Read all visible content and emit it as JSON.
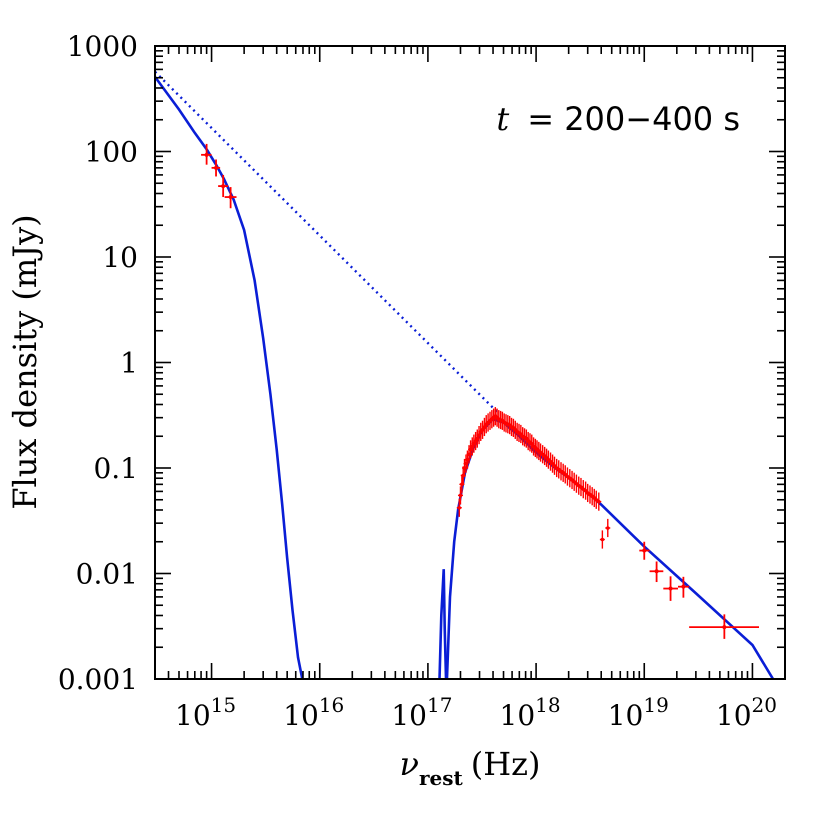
{
  "chart_data": {
    "type": "scatter",
    "xscale": "log",
    "yscale": "log",
    "xlim": [
      300000000000000.0,
      2e+20
    ],
    "ylim": [
      0.001,
      1000
    ],
    "grid": false,
    "xlabel": {
      "symbol": "ν",
      "subscript": "rest",
      "unit": "(Hz)"
    },
    "ylabel": "Flux density (mJy)",
    "annotation": {
      "var": "t",
      "text": "= 200−400 s"
    },
    "x_tick_labels": [
      {
        "value": 1000000000000000.0,
        "base": "10",
        "exp": "15"
      },
      {
        "value": 1e+16,
        "base": "10",
        "exp": "16"
      },
      {
        "value": 1e+17,
        "base": "10",
        "exp": "17"
      },
      {
        "value": 1e+18,
        "base": "10",
        "exp": "18"
      },
      {
        "value": 1e+19,
        "base": "10",
        "exp": "19"
      },
      {
        "value": 1e+20,
        "base": "10",
        "exp": "20"
      }
    ],
    "y_tick_labels": [
      {
        "value": 1000,
        "text": "1000"
      },
      {
        "value": 100,
        "text": "100"
      },
      {
        "value": 10,
        "text": "10"
      },
      {
        "value": 1,
        "text": "1"
      },
      {
        "value": 0.1,
        "text": "0.1"
      },
      {
        "value": 0.01,
        "text": "0.01"
      },
      {
        "value": 0.001,
        "text": "0.001"
      }
    ],
    "colors": {
      "model": "#0a1ed6",
      "data": "#ff0000",
      "axes": "#000000"
    },
    "series": [
      {
        "kind": "model-solid",
        "segments": [
          [
            [
              300000000000000.0,
              510
            ],
            [
              500000000000000.0,
              250
            ],
            [
              700000000000000.0,
              150
            ],
            [
              900000000000000.0,
              105
            ],
            [
              1100000000000000.0,
              75
            ],
            [
              1300000000000000.0,
              55
            ],
            [
              1600000000000000.0,
              35
            ],
            [
              2000000000000000.0,
              18
            ],
            [
              2500000000000000.0,
              6
            ],
            [
              3000000000000000.0,
              1.7
            ],
            [
              3500000000000000.0,
              0.5
            ],
            [
              4000000000000000.0,
              0.15
            ],
            [
              4500000000000000.0,
              0.045
            ],
            [
              5000000000000000.0,
              0.014
            ],
            [
              5600000000000000.0,
              0.0045
            ],
            [
              6300000000000000.0,
              0.0016
            ],
            [
              6900000000000000.0,
              0.001
            ]
          ],
          [
            [
              1.28e+17,
              0.001
            ],
            [
              1.33e+17,
              0.004
            ],
            [
              1.4e+17,
              0.011
            ],
            [
              1.43e+17,
              0.003
            ],
            [
              1.47e+17,
              0.001
            ]
          ],
          [
            [
              1.5e+17,
              0.001
            ],
            [
              1.6e+17,
              0.006
            ],
            [
              1.75e+17,
              0.02
            ],
            [
              1.9e+17,
              0.04
            ],
            [
              2.2e+17,
              0.09
            ],
            [
              2.6e+17,
              0.15
            ],
            [
              3.2e+17,
              0.23
            ],
            [
              4e+17,
              0.29
            ],
            [
              5e+17,
              0.27
            ],
            [
              7e+17,
              0.2
            ],
            [
              1e+18,
              0.14
            ],
            [
              1.5e+18,
              0.1
            ],
            [
              2.2e+18,
              0.075
            ],
            [
              3e+18,
              0.058
            ],
            [
              4e+18,
              0.045
            ],
            [
              1e+19,
              0.018
            ],
            [
              3e+19,
              0.0065
            ],
            [
              1e+20,
              0.0021
            ],
            [
              1.55e+20,
              0.001
            ]
          ]
        ]
      },
      {
        "kind": "model-dotted",
        "points": [
          [
            300000000000000.0,
            570
          ],
          [
            4.5e+17,
            0.33
          ]
        ]
      },
      {
        "kind": "data-optical",
        "points": [
          {
            "x": 900000000000000.0,
            "y": 93,
            "xlo": 800000000000000.0,
            "xhi": 1000000000000000.0,
            "ylo": 75,
            "yhi": 118
          },
          {
            "x": 1100000000000000.0,
            "y": 70,
            "xlo": 1000000000000000.0,
            "xhi": 1200000000000000.0,
            "ylo": 58,
            "yhi": 84
          },
          {
            "x": 1280000000000000.0,
            "y": 47,
            "xlo": 1150000000000000.0,
            "xhi": 1420000000000000.0,
            "ylo": 37,
            "yhi": 60
          },
          {
            "x": 1500000000000000.0,
            "y": 37,
            "xlo": 1320000000000000.0,
            "xhi": 1700000000000000.0,
            "ylo": 29,
            "yhi": 46
          }
        ]
      },
      {
        "kind": "data-hard-xray",
        "points": [
          {
            "x": 1e+19,
            "y": 0.0165,
            "xlo": 9e+18,
            "xhi": 1.12e+19,
            "ylo": 0.0135,
            "yhi": 0.02
          },
          {
            "x": 1.3e+19,
            "y": 0.0105,
            "xlo": 1.12e+19,
            "xhi": 1.5e+19,
            "ylo": 0.0083,
            "yhi": 0.013
          },
          {
            "x": 1.75e+19,
            "y": 0.0072,
            "xlo": 1.5e+19,
            "xhi": 2.05e+19,
            "ylo": 0.0055,
            "yhi": 0.0094
          },
          {
            "x": 2.3e+19,
            "y": 0.0075,
            "xlo": 2.05e+19,
            "xhi": 2.6e+19,
            "ylo": 0.0059,
            "yhi": 0.0093
          },
          {
            "x": 5.5e+19,
            "y": 0.0031,
            "xlo": 2.6e+19,
            "xhi": 1.15e+20,
            "ylo": 0.0024,
            "yhi": 0.0041
          }
        ]
      },
      {
        "kind": "data-xrt",
        "points": [
          [
            1.95e+17,
            0.042
          ],
          [
            2e+17,
            0.055
          ],
          [
            2.06e+17,
            0.07
          ],
          [
            2.12e+17,
            0.085
          ],
          [
            2.18e+17,
            0.1
          ],
          [
            2.25e+17,
            0.11
          ],
          [
            2.32e+17,
            0.12
          ],
          [
            2.4e+17,
            0.135
          ],
          [
            2.48e+17,
            0.15
          ],
          [
            2.57e+17,
            0.16
          ],
          [
            2.66e+17,
            0.17
          ],
          [
            2.76e+17,
            0.18
          ],
          [
            2.86e+17,
            0.19
          ],
          [
            2.97e+17,
            0.205
          ],
          [
            3.08e+17,
            0.22
          ],
          [
            3.2e+17,
            0.23
          ],
          [
            3.33e+17,
            0.245
          ],
          [
            3.46e+17,
            0.26
          ],
          [
            3.6e+17,
            0.27
          ],
          [
            3.75e+17,
            0.28
          ],
          [
            3.9e+17,
            0.29
          ],
          [
            4.05e+17,
            0.3
          ],
          [
            4.2e+17,
            0.31
          ],
          [
            4.36e+17,
            0.3
          ],
          [
            4.52e+17,
            0.29
          ],
          [
            4.7e+17,
            0.285
          ],
          [
            4.88e+17,
            0.28
          ],
          [
            5.07e+17,
            0.27
          ],
          [
            5.27e+17,
            0.265
          ],
          [
            5.48e+17,
            0.26
          ],
          [
            5.7e+17,
            0.255
          ],
          [
            5.93e+17,
            0.245
          ],
          [
            6.17e+17,
            0.24
          ],
          [
            6.42e+17,
            0.23
          ],
          [
            6.68e+17,
            0.22
          ],
          [
            6.95e+17,
            0.215
          ],
          [
            7.23e+17,
            0.21
          ],
          [
            7.52e+17,
            0.2
          ],
          [
            7.82e+17,
            0.195
          ],
          [
            8.13e+17,
            0.19
          ],
          [
            8.45e+17,
            0.18
          ],
          [
            8.78e+17,
            0.175
          ],
          [
            9.12e+17,
            0.17
          ],
          [
            9.48e+17,
            0.16
          ],
          [
            9.85e+17,
            0.155
          ],
          [
            1.02e+18,
            0.15
          ],
          [
            1.06e+18,
            0.145
          ],
          [
            1.1e+18,
            0.14
          ],
          [
            1.15e+18,
            0.135
          ],
          [
            1.2e+18,
            0.13
          ],
          [
            1.25e+18,
            0.125
          ],
          [
            1.3e+18,
            0.12
          ],
          [
            1.36e+18,
            0.115
          ],
          [
            1.42e+18,
            0.11
          ],
          [
            1.48e+18,
            0.105
          ],
          [
            1.55e+18,
            0.1
          ],
          [
            1.62e+18,
            0.097
          ],
          [
            1.7e+18,
            0.093
          ],
          [
            1.78e+18,
            0.09
          ],
          [
            1.86e+18,
            0.087
          ],
          [
            1.95e+18,
            0.083
          ],
          [
            2.05e+18,
            0.08
          ],
          [
            2.15e+18,
            0.077
          ],
          [
            2.25e+18,
            0.074
          ],
          [
            2.36e+18,
            0.071
          ],
          [
            2.48e+18,
            0.068
          ],
          [
            2.6e+18,
            0.066
          ],
          [
            2.73e+18,
            0.063
          ],
          [
            2.87e+18,
            0.061
          ],
          [
            3e+18,
            0.058
          ],
          [
            3.15e+18,
            0.056
          ],
          [
            3.3e+18,
            0.054
          ],
          [
            3.45e+18,
            0.052
          ],
          [
            3.6e+18,
            0.05
          ],
          [
            3.8e+18,
            0.048
          ],
          [
            4.1e+18,
            0.021
          ],
          [
            4.6e+18,
            0.027
          ]
        ]
      }
    ]
  }
}
